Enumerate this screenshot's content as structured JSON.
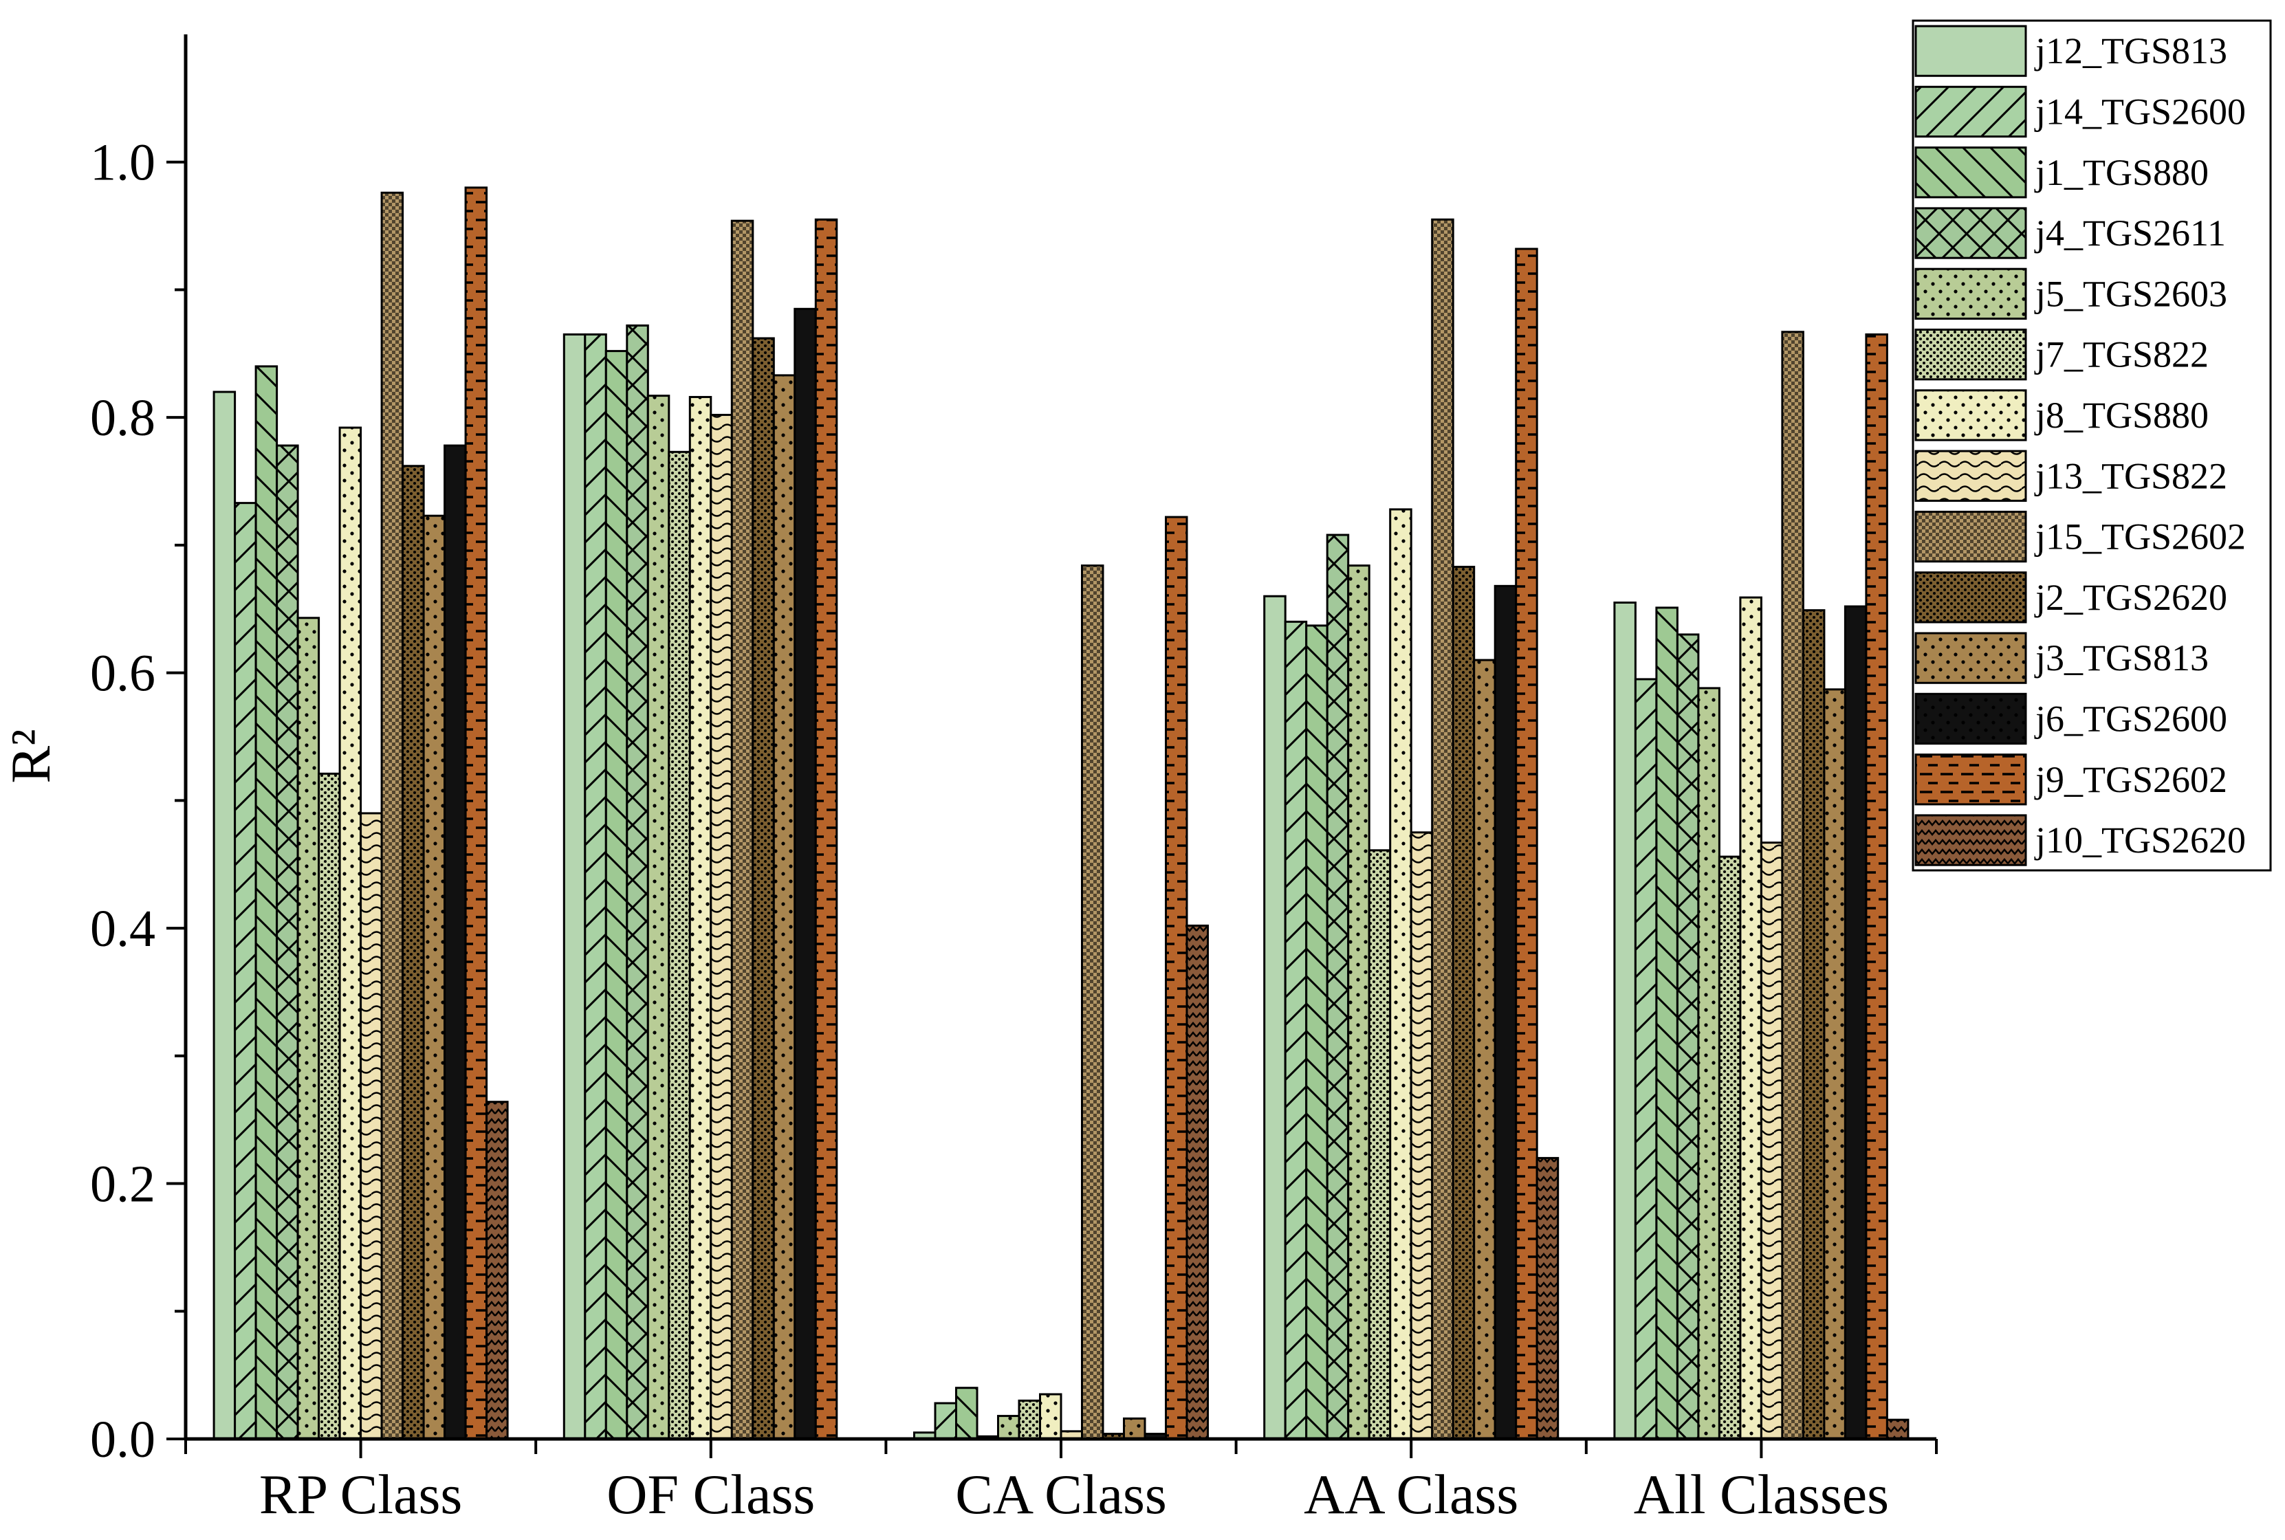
{
  "chart_data": {
    "type": "bar",
    "ylabel": "R²",
    "ylim": [
      0,
      1.1
    ],
    "yticks": [
      "0.0",
      "0.2",
      "0.4",
      "0.6",
      "0.8",
      "1.0"
    ],
    "categories": [
      "RP Class",
      "OF Class",
      "CA Class",
      "AA Class",
      "All Classes"
    ],
    "legend_position": "top-right",
    "series": [
      {
        "name": "j12_TGS813",
        "color": "#b5d6b0",
        "pattern": "solid",
        "values": [
          0.82,
          0.865,
          0.005,
          0.66,
          0.655
        ]
      },
      {
        "name": "j14_TGS2600",
        "color": "#a9d2a4",
        "pattern": "fwd-hatch",
        "values": [
          0.733,
          0.865,
          0.028,
          0.64,
          0.595
        ]
      },
      {
        "name": "j1_TGS880",
        "color": "#9ec993",
        "pattern": "back-hatch",
        "values": [
          0.84,
          0.852,
          0.04,
          0.637,
          0.651
        ]
      },
      {
        "name": "j4_TGS2611",
        "color": "#a2c89a",
        "pattern": "cross",
        "values": [
          0.778,
          0.872,
          0.002,
          0.708,
          0.63
        ]
      },
      {
        "name": "j5_TGS2603",
        "color": "#b8cc96",
        "pattern": "dots",
        "values": [
          0.643,
          0.817,
          0.018,
          0.684,
          0.588
        ]
      },
      {
        "name": "j7_TGS822",
        "color": "#cad6a8",
        "pattern": "dense-dots",
        "values": [
          0.521,
          0.773,
          0.03,
          0.461,
          0.456
        ]
      },
      {
        "name": "j8_TGS880",
        "color": "#f0eec0",
        "pattern": "dots",
        "values": [
          0.792,
          0.816,
          0.035,
          0.728,
          0.659
        ]
      },
      {
        "name": "j13_TGS822",
        "color": "#efe2b3",
        "pattern": "wave",
        "values": [
          0.49,
          0.802,
          0.006,
          0.475,
          0.467
        ]
      },
      {
        "name": "j15_TGS2602",
        "color": "#b39766",
        "pattern": "checker",
        "values": [
          0.976,
          0.954,
          0.684,
          0.955,
          0.867
        ]
      },
      {
        "name": "j2_TGS2620",
        "color": "#7c5f30",
        "pattern": "dense-dots",
        "values": [
          0.762,
          0.862,
          0.004,
          0.683,
          0.649
        ]
      },
      {
        "name": "j3_TGS813",
        "color": "#a8854f",
        "pattern": "dots",
        "values": [
          0.723,
          0.833,
          0.016,
          0.61,
          0.587
        ]
      },
      {
        "name": "j6_TGS2600",
        "color": "#111111",
        "pattern": "dots",
        "values": [
          0.778,
          0.885,
          0.004,
          0.668,
          0.652
        ]
      },
      {
        "name": "j9_TGS2602",
        "color": "#b7642a",
        "pattern": "dashes",
        "values": [
          0.98,
          0.955,
          0.722,
          0.932,
          0.865
        ]
      },
      {
        "name": "j10_TGS2620",
        "color": "#8a5a3a",
        "pattern": "zigzag",
        "values": [
          0.264,
          0.0,
          0.402,
          0.22,
          0.015
        ]
      }
    ]
  }
}
